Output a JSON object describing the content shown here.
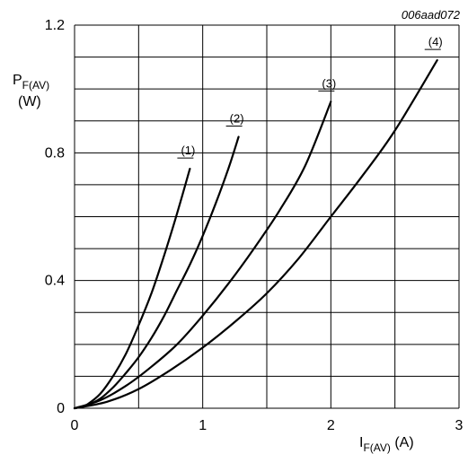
{
  "chart_data": {
    "type": "line",
    "code": "006aad072",
    "xlabel": {
      "main": "I",
      "sub": "F(AV)",
      "unit": " (A)"
    },
    "ylabel": {
      "main": "P",
      "sub": "F(AV)",
      "unit": "(W)"
    },
    "xlim": [
      0,
      3
    ],
    "ylim": [
      0,
      1.2
    ],
    "x_ticks": [
      "0",
      "1",
      "2",
      "3"
    ],
    "y_ticks": [
      "0",
      "0.4",
      "0.8",
      "1.2"
    ],
    "grid": true,
    "series": [
      {
        "label": "(1)",
        "x": [
          0,
          0.05,
          0.1,
          0.2,
          0.3,
          0.4,
          0.5,
          0.6,
          0.7,
          0.8,
          0.9
        ],
        "y": [
          0,
          0.004,
          0.012,
          0.045,
          0.1,
          0.17,
          0.26,
          0.36,
          0.48,
          0.61,
          0.75
        ]
      },
      {
        "label": "(2)",
        "x": [
          0,
          0.1,
          0.2,
          0.3,
          0.4,
          0.5,
          0.6,
          0.7,
          0.8,
          0.9,
          1.0,
          1.1,
          1.2,
          1.28
        ],
        "y": [
          0,
          0.01,
          0.03,
          0.065,
          0.11,
          0.16,
          0.22,
          0.29,
          0.37,
          0.45,
          0.54,
          0.64,
          0.75,
          0.85
        ]
      },
      {
        "label": "(3)",
        "x": [
          0,
          0.2,
          0.4,
          0.6,
          0.8,
          1.0,
          1.2,
          1.4,
          1.6,
          1.8,
          2.0
        ],
        "y": [
          0,
          0.025,
          0.07,
          0.13,
          0.2,
          0.29,
          0.39,
          0.5,
          0.62,
          0.76,
          0.96
        ]
      },
      {
        "label": "(4)",
        "x": [
          0,
          0.25,
          0.5,
          0.75,
          1.0,
          1.25,
          1.5,
          1.75,
          2.0,
          2.25,
          2.5,
          2.83
        ],
        "y": [
          0,
          0.02,
          0.06,
          0.12,
          0.19,
          0.27,
          0.36,
          0.47,
          0.6,
          0.73,
          0.87,
          1.09
        ]
      }
    ]
  }
}
